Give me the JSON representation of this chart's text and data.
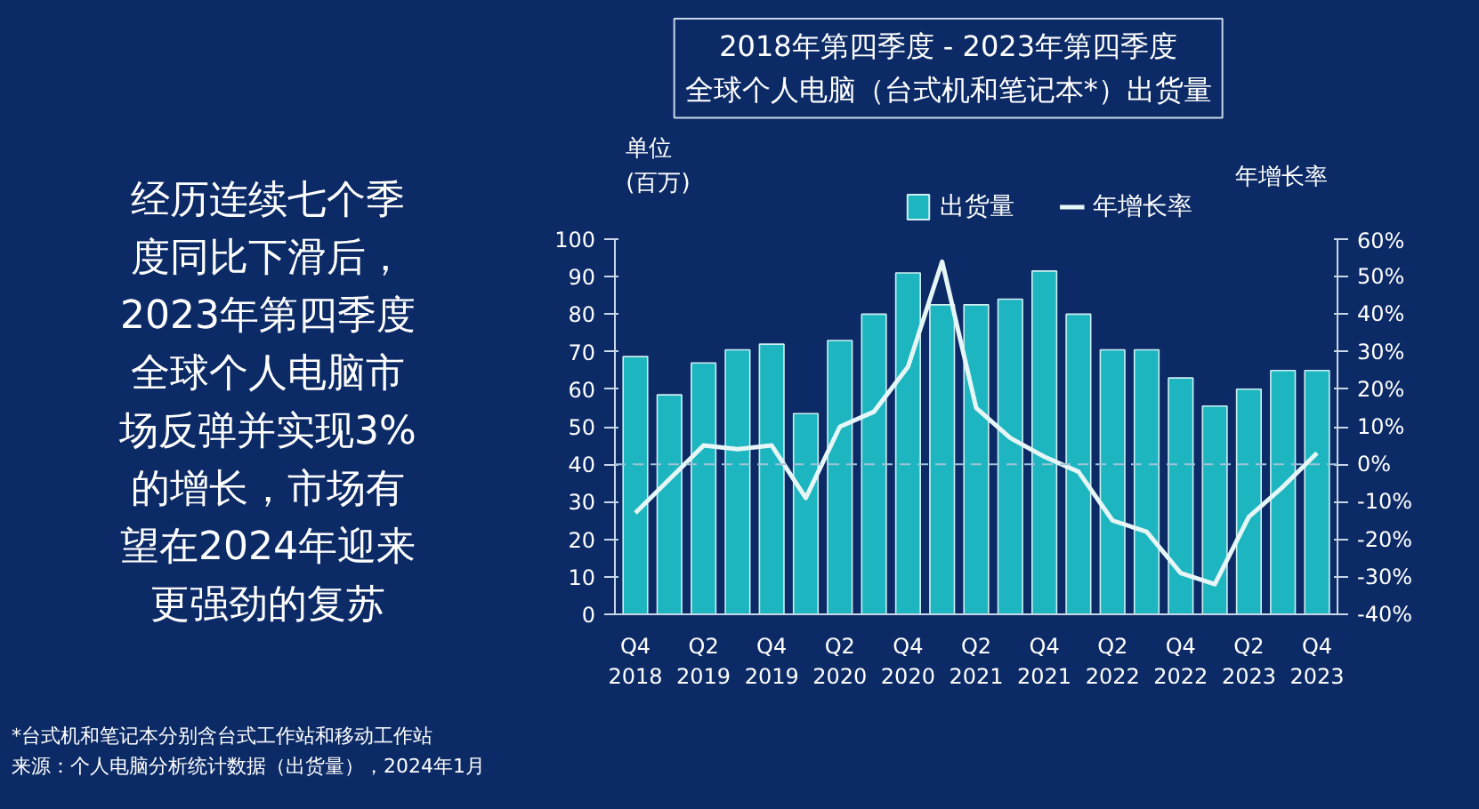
{
  "chart_data": {
    "type": "bar",
    "title": "2018年第四季度 - 2023年第四季度",
    "subtitle": "全球个人电脑（台式机和笔记本*）出货量",
    "ylabel": "单位 (百万)",
    "y2label": "年增长率",
    "categories": [
      "Q4 2018",
      null,
      "Q2 2019",
      null,
      "Q4 2019",
      null,
      "Q2 2020",
      null,
      "Q4 2020",
      null,
      "Q2 2021",
      null,
      "Q4 2021",
      null,
      "Q2 2022",
      null,
      "Q4 2022",
      null,
      "Q2 2023",
      null,
      "Q4 2023"
    ],
    "series": [
      {
        "name": "出货量",
        "color": "#1cb5c0",
        "values": [
          68.7,
          58.5,
          67,
          70.5,
          72,
          53.5,
          73,
          80,
          91,
          82.5,
          82.5,
          84,
          91.5,
          80,
          70.5,
          70.5,
          63,
          55.5,
          60,
          65,
          65
        ]
      },
      {
        "name": "年增长率",
        "type": "line",
        "axis": "y2",
        "color": "#e6f6f6",
        "values": [
          -13,
          -4,
          5,
          4,
          5,
          -9,
          10,
          14,
          26,
          54,
          15,
          7,
          2,
          -2,
          -15,
          -18,
          -29,
          -32,
          -14,
          -6,
          3
        ]
      }
    ],
    "ylim": [
      0,
      100
    ],
    "yticks": [
      0,
      10,
      20,
      30,
      40,
      50,
      60,
      70,
      80,
      90,
      100
    ],
    "y2lim": [
      -40,
      60
    ],
    "y2ticks": [
      {
        "value": -40,
        "label": "-40%"
      },
      {
        "value": -30,
        "label": "-30%"
      },
      {
        "value": -20,
        "label": "-20%"
      },
      {
        "value": -10,
        "label": "-10%"
      },
      {
        "value": 0,
        "label": "0%"
      },
      {
        "value": 10,
        "label": "10%"
      },
      {
        "value": 20,
        "label": "20%"
      },
      {
        "value": 30,
        "label": "30%"
      },
      {
        "value": 40,
        "label": "40%"
      },
      {
        "value": 50,
        "label": "50%"
      },
      {
        "value": 60,
        "label": "60%"
      }
    ],
    "ref_lines": [
      {
        "axis": "y2",
        "value": 0,
        "label": null,
        "color": "#9fc3d6",
        "line_style": "dashed"
      }
    ],
    "grid": false,
    "legend": "top",
    "marker": "none",
    "line_style": "solid",
    "annotations": [
      "经历连续七个季度同比下滑后，2023年第四季度全球个人电脑市场反弹并实现3%的增长，市场有望在2024年迎来更强劲的复苏",
      "*台式机和笔记本分别含台式工作站和移动工作站",
      "来源：个人电脑分析统计数据（出货量），2024年1月"
    ]
  }
}
